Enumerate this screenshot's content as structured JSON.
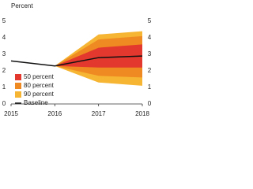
{
  "chart_data": {
    "type": "fan",
    "y_label": "Percent",
    "xlim": [
      2015,
      2018
    ],
    "xticks": [
      2015,
      2016,
      2017,
      2018
    ],
    "ylim": [
      0,
      5
    ],
    "yticks": [
      0,
      1,
      2,
      3,
      4,
      5
    ],
    "y2lim": [
      0,
      5
    ],
    "y2ticks": [
      0,
      1,
      2,
      3,
      4,
      5
    ],
    "legend": "lower left",
    "bands": [
      {
        "name": "90 percent",
        "color": "#f6b533",
        "x": [
          2016,
          2017,
          2018
        ],
        "lower": [
          2.3,
          1.3,
          1.1
        ],
        "upper": [
          2.3,
          4.2,
          4.4
        ]
      },
      {
        "name": "80 percent",
        "color": "#ef8a22",
        "x": [
          2016,
          2017,
          2018
        ],
        "lower": [
          2.3,
          1.7,
          1.6
        ],
        "upper": [
          2.3,
          3.9,
          4.1
        ]
      },
      {
        "name": "50 percent",
        "color": "#e2382d",
        "x": [
          2016,
          2017,
          2018
        ],
        "lower": [
          2.3,
          2.2,
          2.2
        ],
        "upper": [
          2.3,
          3.4,
          3.6
        ]
      }
    ],
    "series": [
      {
        "name": "Baseline",
        "color": "#111111",
        "x": [
          2015,
          2016,
          2017,
          2018
        ],
        "values": [
          2.6,
          2.3,
          2.8,
          2.9
        ]
      }
    ]
  }
}
